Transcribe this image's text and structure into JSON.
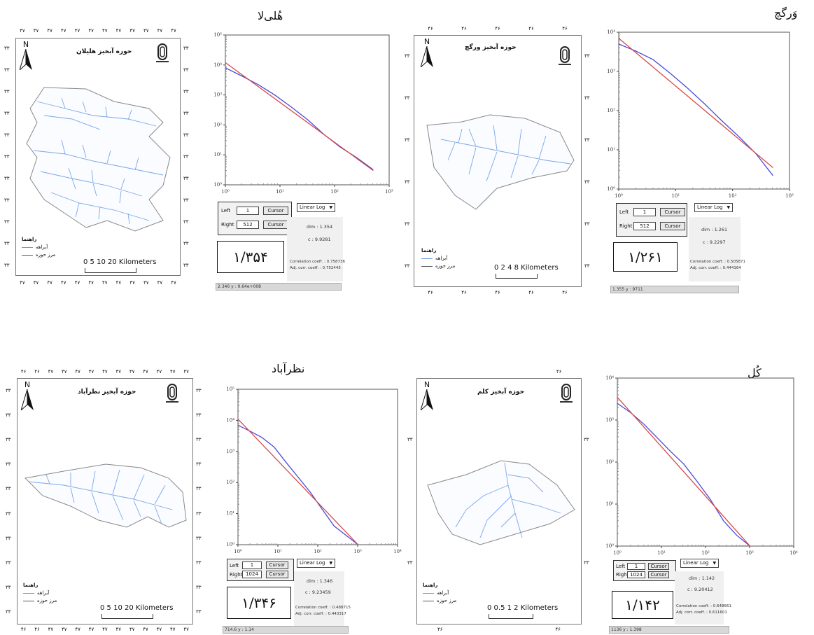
{
  "headings": {
    "top_left": "هُلی‌لا",
    "top_right": "وَرگچ",
    "bottom_left": "نظرآباد",
    "bottom_right": "کُل"
  },
  "maps": [
    {
      "title": "حوزه آبخیز هلیلان",
      "north": "N",
      "scale_label": "0   5  10        20 Kilometers",
      "legend_title": "راهنما",
      "legend_stream": "آبراهه",
      "legend_boundary": "مرز حوزه",
      "ticks_h": [
        "۴۷",
        "۴۷",
        "۴۷",
        "۴۷",
        "۴۷",
        "۴۷",
        "۴۷",
        "۴۷",
        "۴۷",
        "۴۷",
        "۴۷",
        "۴۷"
      ],
      "ticks_v": [
        "۳۳",
        "۳۳",
        "۳۳",
        "۳۳",
        "۳۳",
        "۳۳",
        "۳۳",
        "۳۳",
        "۳۳",
        "۳۳",
        "۳۳"
      ]
    },
    {
      "title": "حوزه آبخیز ورگچ",
      "north": "N",
      "scale_label": "0  2  4        8 Kilometers",
      "legend_title": "راهنما",
      "legend_stream": "آبراهه",
      "legend_boundary": "مرز حوزه",
      "ticks_h": [
        "۴۶",
        "۴۶",
        "۴۶",
        "۴۶",
        "۴۶"
      ],
      "ticks_v": [
        "۳۳",
        "۳۳",
        "۳۳",
        "۳۳",
        "۳۳",
        "۳۳"
      ]
    },
    {
      "title": "حوزه آبخیز نظرآباد",
      "north": "N",
      "scale_label": "0   5  10        20 Kilometers",
      "legend_title": "راهنما",
      "legend_stream": "آبراهه",
      "legend_boundary": "مرز حوزه",
      "ticks_h": [
        "۴۶",
        "۴۶",
        "۴۷",
        "۴۷",
        "۴۷",
        "۴۷",
        "۴۷",
        "۴۷",
        "۴۷",
        "۴۷",
        "۴۷",
        "۴۷",
        "۴۷"
      ],
      "ticks_v": [
        "۳۳",
        "۳۳",
        "۳۳",
        "۳۳",
        "۳۳",
        "۳۳",
        "۳۳",
        "۳۳",
        "۳۳",
        "۳۳"
      ]
    },
    {
      "title": "حوزه آبخیز کلم",
      "north": "N",
      "scale_label": "0  0.5  1        2 Kilometers",
      "legend_title": "راهنما",
      "legend_stream": "آبراهه",
      "legend_boundary": "مرز حوزه",
      "ticks_h": [
        "۴۶",
        "۴۶"
      ],
      "ticks_v": [
        "۳۳",
        "۳۳"
      ]
    }
  ],
  "panels": [
    {
      "left_label": "Left",
      "left_value": "1",
      "right_label": "Right",
      "right_value": "512",
      "cursor_label": "Cursor",
      "dropdown": "Linear Log",
      "dim": "dim : 1.354",
      "c": "c : 9.9281",
      "corr": "Correlation coeff. : 0.758736",
      "adj": "Adj. corr. coeff. : 0.752445",
      "value": "۱/۳۵۴",
      "status": "2.346  y : 9.64e+008"
    },
    {
      "left_label": "Left",
      "left_value": "1",
      "right_label": "Right",
      "right_value": "512",
      "cursor_label": "Cursor",
      "dropdown": "Linear Log",
      "dim": "dim : 1.261",
      "c": "c : 9.2297",
      "corr": "Correlation coeff. : 0.505871",
      "adj": "Adj. corr. coeff. : 0.444164",
      "value": "۱/۲۶۱",
      "status": "1.355  y : 9711"
    },
    {
      "left_label": "Left",
      "left_value": "1",
      "right_label": "Right",
      "right_value": "1024",
      "cursor_label": "Cursor",
      "dropdown": "Linear Log",
      "dim": "dim : 1.346",
      "c": "c : 9.23459",
      "corr": "Correlation coeff. : 0.488715",
      "adj": "Adj. corr. coeff. : 0.443317",
      "value": "۱/۳۴۶",
      "status": "714.6  y : 1.14"
    },
    {
      "left_label": "Left",
      "left_value": "1",
      "right_label": "Right",
      "right_value": "1024",
      "cursor_label": "Cursor",
      "dropdown": "Linear Log",
      "dim": "dim : 1.142",
      "c": "c : 9.20412",
      "corr": "Correlation coeff. : 0.648661",
      "adj": "Adj. corr. coeff. : 0.611601",
      "value": "۱/۱۴۲",
      "status": "1136  y : 1.398"
    }
  ],
  "chart_data": [
    {
      "type": "line",
      "xscale": "log",
      "yscale": "log",
      "xlim": [
        1,
        1000
      ],
      "ylim": [
        1,
        100000
      ],
      "xticks": [
        "10⁰",
        "10¹",
        "10²",
        "10³"
      ],
      "yticks": [
        "10⁰",
        "10¹",
        "10²",
        "10³",
        "10⁴",
        "10⁵"
      ],
      "series": [
        {
          "color": "#4a4ad8",
          "x": [
            1,
            2,
            4,
            8,
            16,
            32,
            64,
            128,
            256,
            512
          ],
          "y": [
            8000,
            4300,
            2200,
            1000,
            400,
            150,
            48,
            18,
            8,
            3.2
          ]
        },
        {
          "color": "#d84a4a",
          "x": [
            1,
            512
          ],
          "y": [
            12000,
            3.0
          ]
        }
      ]
    },
    {
      "type": "line",
      "xscale": "log",
      "yscale": "log",
      "xlim": [
        1,
        1000
      ],
      "ylim": [
        1,
        10000
      ],
      "xticks": [
        "10⁰",
        "10¹",
        "10²",
        "10³"
      ],
      "yticks": [
        "10⁰",
        "10¹",
        "10²",
        "10³",
        "10⁴"
      ],
      "series": [
        {
          "color": "#4a4ad8",
          "x": [
            1,
            2,
            4,
            8,
            16,
            32,
            64,
            128,
            256,
            512
          ],
          "y": [
            5000,
            3300,
            2000,
            900,
            380,
            150,
            56,
            22,
            8,
            2.2
          ]
        },
        {
          "color": "#d84a4a",
          "x": [
            1,
            512
          ],
          "y": [
            7000,
            3.5
          ]
        }
      ]
    },
    {
      "type": "line",
      "xscale": "log",
      "yscale": "log",
      "xlim": [
        1,
        10000
      ],
      "ylim": [
        1,
        100000
      ],
      "xticks": [
        "10⁰",
        "10¹",
        "10²",
        "10³",
        "10⁴"
      ],
      "yticks": [
        "10⁰",
        "10¹",
        "10²",
        "10³",
        "10⁴",
        "10⁵"
      ],
      "series": [
        {
          "color": "#4a4ad8",
          "x": [
            1,
            2,
            4,
            8,
            16,
            32,
            64,
            128,
            256,
            512,
            1024
          ],
          "y": [
            7000,
            4500,
            2800,
            1400,
            450,
            150,
            50,
            14,
            4,
            2,
            1
          ]
        },
        {
          "color": "#d84a4a",
          "x": [
            1,
            1024
          ],
          "y": [
            11000,
            1.0
          ]
        }
      ]
    },
    {
      "type": "line",
      "xscale": "log",
      "yscale": "log",
      "xlim": [
        1,
        10000
      ],
      "ylim": [
        1,
        10000
      ],
      "xticks": [
        "10⁰",
        "10¹",
        "10²",
        "10³",
        "10⁴"
      ],
      "yticks": [
        "10⁰",
        "10¹",
        "10²",
        "10³",
        "10⁴"
      ],
      "series": [
        {
          "color": "#4a4ad8",
          "x": [
            1,
            2,
            4,
            8,
            16,
            32,
            64,
            128,
            256,
            512,
            1024
          ],
          "y": [
            2500,
            1500,
            800,
            380,
            180,
            90,
            35,
            13,
            4,
            1.8,
            1
          ]
        },
        {
          "color": "#d84a4a",
          "x": [
            1,
            1024
          ],
          "y": [
            3500,
            1.0
          ]
        }
      ]
    }
  ]
}
